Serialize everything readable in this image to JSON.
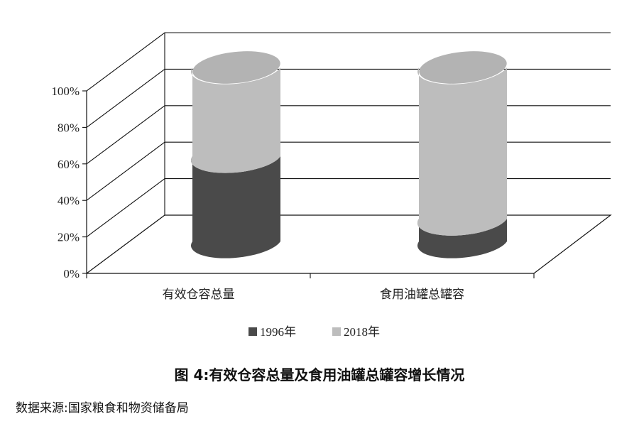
{
  "chart_data": {
    "type": "bar",
    "style": "3d-stacked-cylinder-percent",
    "categories": [
      "有效仓容总量",
      "食用油罐总罐容"
    ],
    "series": [
      {
        "name": "1996年",
        "color": "#4a4a4a",
        "values": [
          49,
          13
        ]
      },
      {
        "name": "2018年",
        "color": "#bdbdbd",
        "values": [
          51,
          87
        ]
      }
    ],
    "yticks": [
      "0%",
      "20%",
      "40%",
      "60%",
      "80%",
      "100%"
    ],
    "ylim": [
      0,
      100
    ],
    "grid": true,
    "legend_position": "bottom"
  },
  "caption": {
    "title": "图 4:有效仓容总量及食用油罐总罐容增长情况",
    "source": "数据来源:国家粮食和物资储备局"
  }
}
